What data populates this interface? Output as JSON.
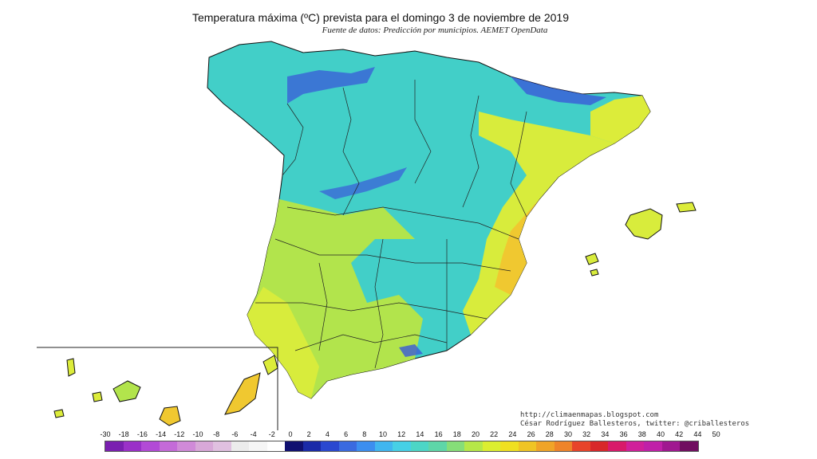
{
  "header": {
    "title": "Temperatura máxima (ºC) prevista para el domingo 3 de noviembre de 2019",
    "subtitle": "Fuente de datos: Predicción por municipios. AEMET OpenData"
  },
  "credits": {
    "line1": "http://climaenmapas.blogspot.com",
    "line2": "César Rodríguez Ballesteros, twitter: @criballesteros"
  },
  "legend": {
    "labels": [
      "-30",
      "-18",
      "-16",
      "-14",
      "-12",
      "-10",
      "-8",
      "-6",
      "-4",
      "-2",
      "0",
      "2",
      "4",
      "6",
      "8",
      "10",
      "12",
      "14",
      "16",
      "18",
      "20",
      "22",
      "24",
      "26",
      "28",
      "30",
      "32",
      "34",
      "36",
      "38",
      "40",
      "42",
      "44",
      "50"
    ],
    "colors": [
      "#7a1fb0",
      "#9a30c8",
      "#b24ad6",
      "#c46ad8",
      "#d08ad8",
      "#d8a8d8",
      "#e0c0e0",
      "#ececec",
      "#f6f6f6",
      "#ffffff",
      "#101070",
      "#1a2aa8",
      "#2a48d0",
      "#3a6ae0",
      "#3c8ef0",
      "#40b6f0",
      "#46d0e6",
      "#4cd6c6",
      "#5ed6a8",
      "#86de78",
      "#b6e848",
      "#dcee30",
      "#f0e020",
      "#f0c424",
      "#f0a428",
      "#ee842a",
      "#e8442a",
      "#d8282a",
      "#d81a6a",
      "#d0209a",
      "#c020a8",
      "#a01890",
      "#700e60"
    ]
  },
  "map": {
    "region_colors": {
      "cool": "#3ecfc8",
      "cool_light": "#5cd6b6",
      "cold": "#3a5ad8",
      "mild": "#a8e05a",
      "warm": "#d8ec3c",
      "hot": "#f0c830"
    }
  }
}
